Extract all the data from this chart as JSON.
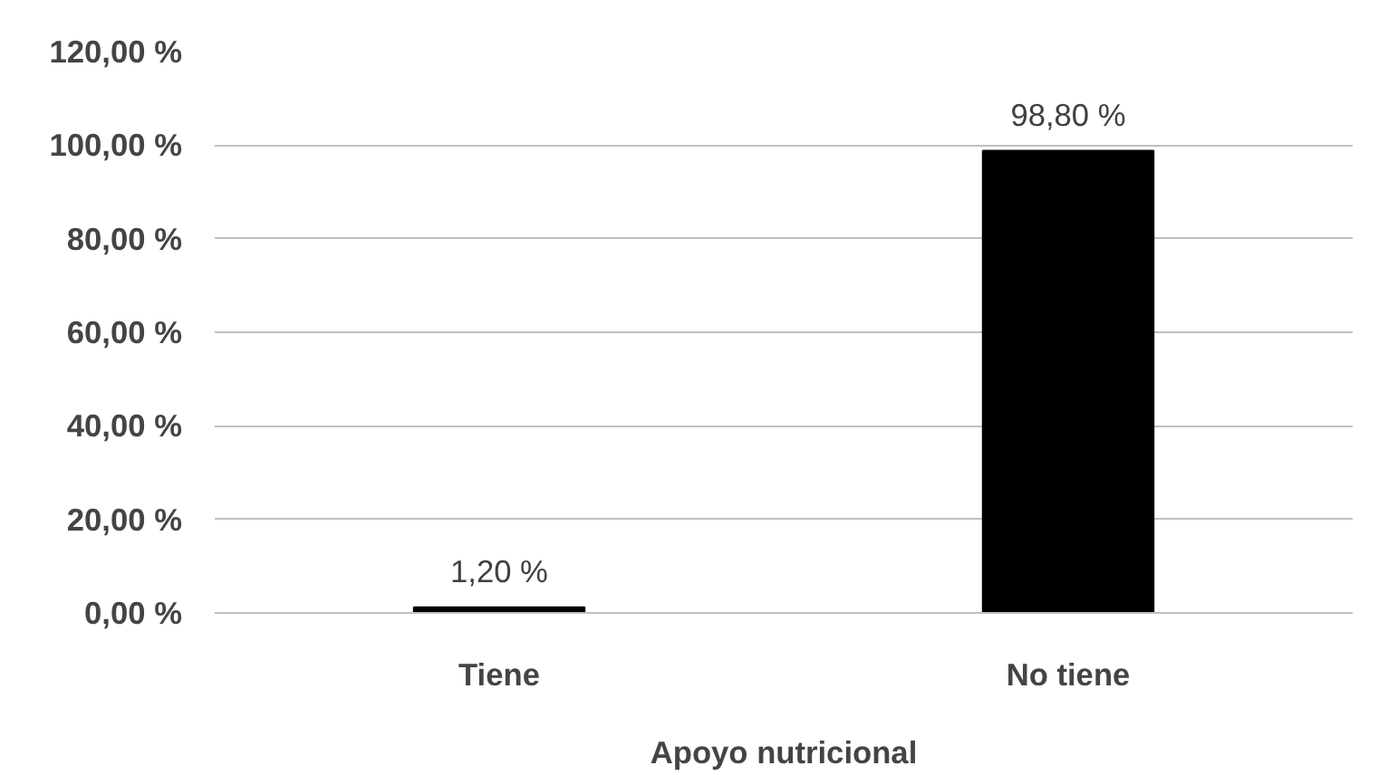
{
  "chart_data": {
    "type": "bar",
    "xlabel": "Apoyo nutricional",
    "categories": [
      "Tiene",
      "No tiene"
    ],
    "series": [
      {
        "color": "#000000",
        "values": [
          1.2,
          98.8
        ],
        "value_labels": [
          "1,20 %",
          "98,80 %"
        ]
      }
    ],
    "ylim": [
      0,
      120
    ],
    "yticks": [
      {
        "value": 0,
        "label": "0,00 %"
      },
      {
        "value": 20,
        "label": "20,00 %"
      },
      {
        "value": 40,
        "label": "40,00 %"
      },
      {
        "value": 60,
        "label": "60,00 %"
      },
      {
        "value": 80,
        "label": "80,00 %"
      },
      {
        "value": 100,
        "label": "100,00 %"
      },
      {
        "value": 120,
        "label": "120,00 %"
      }
    ],
    "grid": "y"
  }
}
